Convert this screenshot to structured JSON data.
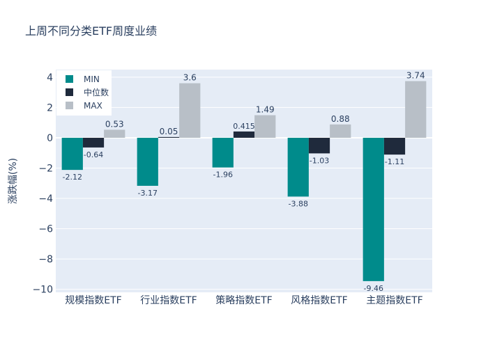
{
  "chart_data": {
    "type": "bar",
    "title": "上周不同分类ETF周度业绩",
    "xlabel": "",
    "ylabel": "涨跌幅(%)",
    "categories": [
      "规模指数ETF",
      "行业指数ETF",
      "策略指数ETF",
      "风格指数ETF",
      "主题指数ETF"
    ],
    "series": [
      {
        "name": "MIN",
        "color": "#008b8b",
        "values": [
          -2.12,
          -3.17,
          -1.96,
          -3.88,
          -9.46
        ],
        "labels": [
          "-2.12",
          "-3.17",
          "-1.96",
          "-3.88",
          "-9.46"
        ]
      },
      {
        "name": "中位数",
        "color": "#1f2a3c",
        "values": [
          -0.64,
          0.05,
          0.415,
          -1.03,
          -1.11
        ],
        "labels": [
          "-0.64",
          "0.05",
          "0.415",
          "-1.03",
          "-1.11"
        ]
      },
      {
        "name": "MAX",
        "color": "#b8bfc7",
        "values": [
          0.53,
          3.6,
          1.49,
          0.88,
          3.74
        ],
        "labels": [
          "0.53",
          "3.6",
          "1.49",
          "0.88",
          "3.74"
        ]
      }
    ],
    "ylim": [
      -10.2,
      4.5
    ],
    "yticks": [
      4,
      2,
      0,
      -2,
      -4,
      -6,
      -8,
      -10
    ],
    "ytick_labels": [
      "4",
      "2",
      "0",
      "−2",
      "−4",
      "−6",
      "−8",
      "−10"
    ],
    "legend_position": "top-left",
    "grid": true,
    "colors": {
      "plot_bg": "#e5ecf6",
      "grid": "#ffffff",
      "text": "#2a3f5f"
    }
  }
}
